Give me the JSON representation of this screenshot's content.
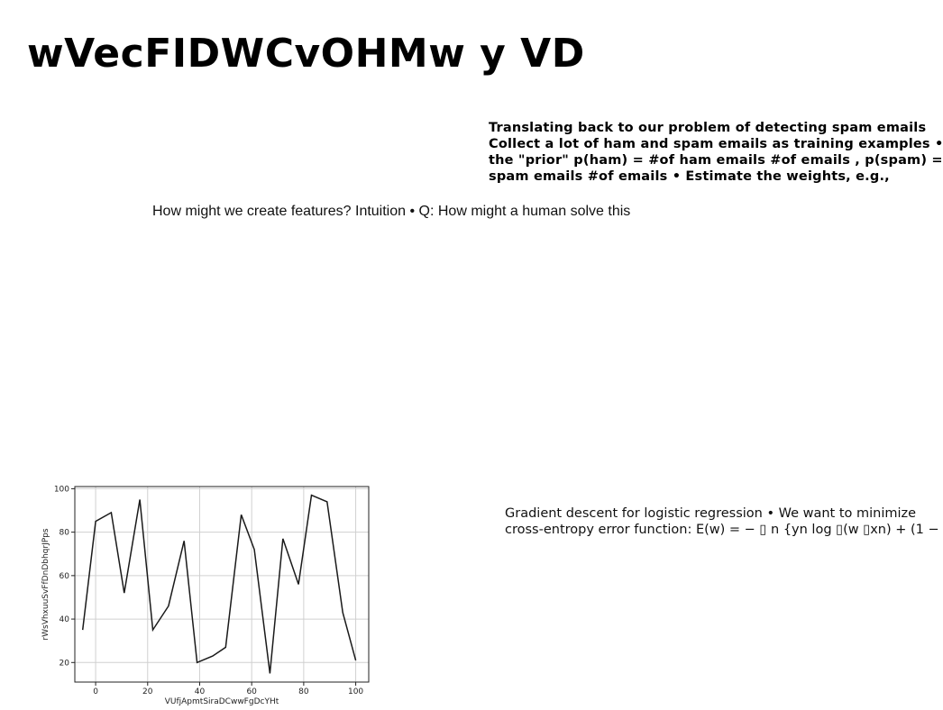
{
  "title": "wVecFIDWCvOHMw y VD",
  "text_block_1": {
    "lines": [
      "Translating back to our problem of detecting spam emails",
      "Collect a lot of ham and spam emails as training examples •",
      "the \"prior\" p(ham) = #of ham emails #of emails , p(spam) =",
      "spam emails #of emails • Estimate the weights, e.g.,"
    ]
  },
  "text_block_2": "How might we create features? Intuition • Q: How might a human solve this",
  "text_block_3": {
    "lines": [
      "Gradient descent for logistic regression • We want to minimize",
      "cross-entropy error function: E(w) = − ▯ n {yn log ▯(w ▯xn) + (1 −"
    ]
  },
  "chart_data": {
    "type": "line",
    "xlabel": "VUfjApmtSiraDCwwFgDcYHt",
    "ylabel": "rWsVhxuuSvFfDnDbhqrJPps",
    "xlim": [
      -8,
      105
    ],
    "ylim": [
      11,
      101
    ],
    "xticks": [
      0,
      20,
      40,
      60,
      80,
      100
    ],
    "yticks": [
      20,
      40,
      60,
      80,
      100
    ],
    "grid": true,
    "line_color": "#1a1a1a",
    "series": [
      {
        "x": [
          -5,
          0,
          6,
          11,
          17,
          22,
          28,
          34,
          39,
          45,
          50,
          56,
          61,
          67,
          72,
          78,
          83,
          89,
          95,
          100
        ],
        "y": [
          35,
          85,
          89,
          52,
          95,
          35,
          46,
          76,
          20,
          23,
          27,
          88,
          72,
          15,
          77,
          56,
          97,
          94,
          43,
          21
        ]
      }
    ]
  }
}
